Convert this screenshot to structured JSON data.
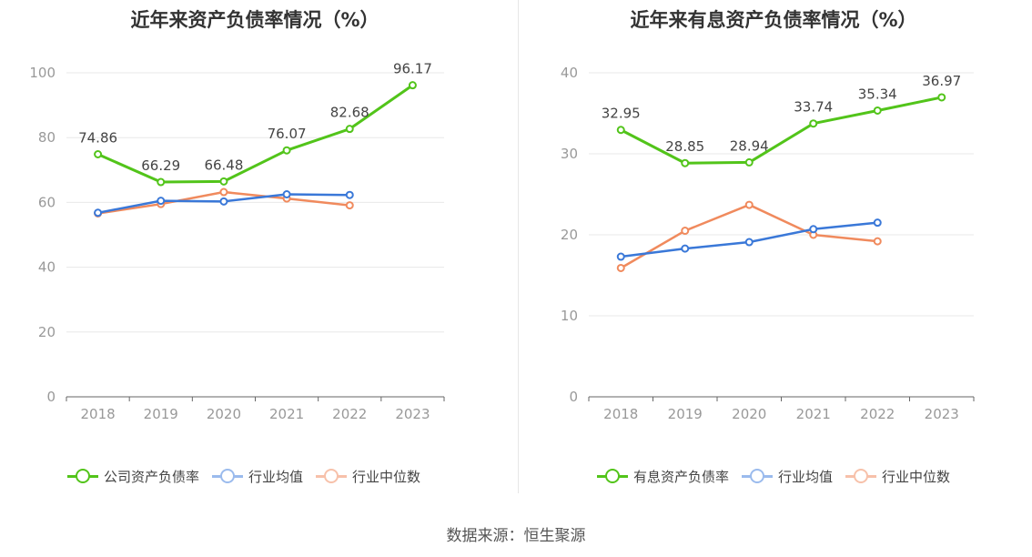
{
  "chart_data": [
    {
      "type": "line",
      "title": "近年来资产负债率情况（%）",
      "categories": [
        "2018",
        "2019",
        "2020",
        "2021",
        "2022",
        "2023"
      ],
      "ylim": [
        0,
        100
      ],
      "yticks": [
        0,
        20,
        40,
        60,
        80,
        100
      ],
      "grid": true,
      "legend": "bottom",
      "series": [
        {
          "name": "公司资产负债率",
          "color": "#52c41a",
          "values": [
            74.86,
            66.29,
            66.48,
            76.07,
            82.68,
            96.17
          ],
          "labels": [
            "74.86",
            "66.29",
            "66.48",
            "76.07",
            "82.68",
            "96.17"
          ]
        },
        {
          "name": "行业均值",
          "color": "#3a78d8",
          "values": [
            56.8,
            60.5,
            60.3,
            62.5,
            62.3,
            null
          ]
        },
        {
          "name": "行业中位数",
          "color": "#f08a5d",
          "values": [
            56.6,
            59.5,
            63.2,
            61.2,
            59.1,
            null
          ]
        }
      ]
    },
    {
      "type": "line",
      "title": "近年来有息资产负债率情况（%）",
      "categories": [
        "2018",
        "2019",
        "2020",
        "2021",
        "2022",
        "2023"
      ],
      "ylim": [
        0,
        40
      ],
      "yticks": [
        0,
        10,
        20,
        30,
        40
      ],
      "grid": true,
      "legend": "bottom",
      "series": [
        {
          "name": "有息资产负债率",
          "color": "#52c41a",
          "values": [
            32.95,
            28.85,
            28.94,
            33.74,
            35.34,
            36.97
          ],
          "labels": [
            "32.95",
            "28.85",
            "28.94",
            "33.74",
            "35.34",
            "36.97"
          ]
        },
        {
          "name": "行业均值",
          "color": "#3a78d8",
          "values": [
            17.3,
            18.3,
            19.1,
            20.7,
            21.5,
            null
          ]
        },
        {
          "name": "行业中位数",
          "color": "#f08a5d",
          "values": [
            15.9,
            20.5,
            23.7,
            20.0,
            19.2,
            null
          ]
        }
      ]
    }
  ],
  "source": "数据来源：恒生聚源"
}
